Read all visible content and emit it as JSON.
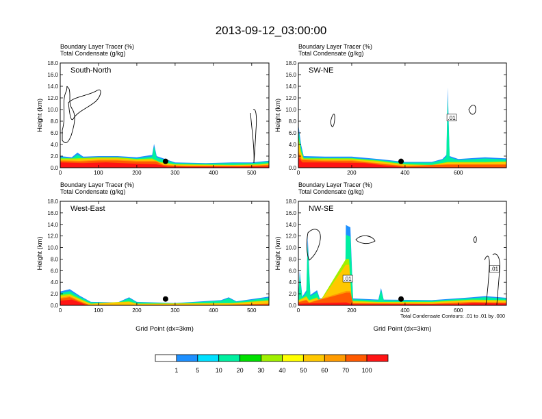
{
  "title": "2013-09-12_03:00:00",
  "subtitle_field1": "Boundary Layer Tracer   (%)",
  "subtitle_field2": "Total Condensate   (g/kg)",
  "ylabel": "Height (km)",
  "xlabel": "Grid Point (dx=3km)",
  "contour_note": "Total Condensate Contours: .01 to .01 by .000",
  "chart_data": [
    {
      "type": "contour",
      "panel": "South-North",
      "xlim": [
        0,
        545
      ],
      "ylim": [
        0,
        18
      ],
      "xticks": [
        0,
        100,
        200,
        300,
        400,
        500
      ],
      "yticks": [
        0,
        2,
        4,
        6,
        8,
        10,
        12,
        14,
        16,
        18
      ],
      "ytick_labels": [
        "0.0",
        "2.0",
        "4.0",
        "6.0",
        "8.0",
        "10.0",
        "12.0",
        "14.0",
        "16.0",
        "18.0"
      ],
      "marker_x": 275,
      "marker_y": 1.1,
      "contour_labels": [],
      "tracer_bands": [
        {
          "min": 5,
          "points": [
            [
              0,
              2.0
            ],
            [
              30,
              1.8
            ],
            [
              45,
              2.6
            ],
            [
              60,
              1.9
            ],
            [
              100,
              2.0
            ],
            [
              150,
              2.0
            ],
            [
              200,
              1.8
            ],
            [
              240,
              2.2
            ],
            [
              245,
              4.1
            ],
            [
              252,
              2.0
            ],
            [
              300,
              0.9
            ],
            [
              380,
              0.8
            ],
            [
              450,
              0.9
            ],
            [
              500,
              0.9
            ],
            [
              545,
              1.2
            ]
          ]
        },
        {
          "min": 40,
          "points": [
            [
              0,
              1.6
            ],
            [
              40,
              1.6
            ],
            [
              100,
              1.8
            ],
            [
              150,
              1.8
            ],
            [
              200,
              1.5
            ],
            [
              240,
              1.6
            ],
            [
              260,
              1.0
            ],
            [
              300,
              0.6
            ],
            [
              450,
              0.5
            ],
            [
              520,
              0.6
            ],
            [
              545,
              0.8
            ]
          ]
        },
        {
          "min": 70,
          "points": [
            [
              0,
              1.3
            ],
            [
              50,
              1.2
            ],
            [
              100,
              1.4
            ],
            [
              150,
              1.4
            ],
            [
              200,
              1.2
            ],
            [
              250,
              1.2
            ],
            [
              270,
              0.5
            ],
            [
              330,
              0.3
            ],
            [
              470,
              0.3
            ],
            [
              545,
              0.5
            ]
          ]
        },
        {
          "min": 100,
          "points": [
            [
              0,
              0.9
            ],
            [
              60,
              0.8
            ],
            [
              120,
              0.9
            ],
            [
              200,
              0.7
            ],
            [
              250,
              0.6
            ],
            [
              280,
              0.2
            ],
            [
              545,
              0.2
            ]
          ]
        }
      ]
    },
    {
      "type": "contour",
      "panel": "SW-NE",
      "xlim": [
        0,
        780
      ],
      "ylim": [
        0,
        18
      ],
      "xticks": [
        0,
        200,
        400,
        600
      ],
      "yticks": [
        0,
        2,
        4,
        6,
        8,
        10,
        12,
        14,
        16,
        18
      ],
      "ytick_labels": [
        "0.0",
        "2.0",
        "4.0",
        "6.0",
        "8.0",
        "10.0",
        "12.0",
        "14.0",
        "16.0",
        "18.0"
      ],
      "marker_x": 385,
      "marker_y": 1.1,
      "contour_labels": [
        ".01"
      ],
      "tracer_bands": [
        {
          "min": 5,
          "points": [
            [
              0,
              7.5
            ],
            [
              10,
              4.0
            ],
            [
              20,
              2.0
            ],
            [
              100,
              1.9
            ],
            [
              200,
              1.9
            ],
            [
              300,
              1.5
            ],
            [
              400,
              1.0
            ],
            [
              500,
              1.0
            ],
            [
              540,
              1.5
            ],
            [
              555,
              2.2
            ],
            [
              560,
              13.8
            ],
            [
              567,
              2.0
            ],
            [
              600,
              1.5
            ],
            [
              700,
              1.8
            ],
            [
              780,
              1.6
            ]
          ]
        },
        {
          "min": 40,
          "points": [
            [
              0,
              5.5
            ],
            [
              10,
              2.8
            ],
            [
              20,
              1.6
            ],
            [
              100,
              1.6
            ],
            [
              200,
              1.6
            ],
            [
              300,
              1.2
            ],
            [
              400,
              0.6
            ],
            [
              500,
              0.5
            ],
            [
              560,
              1.0
            ],
            [
              600,
              1.0
            ],
            [
              700,
              1.0
            ],
            [
              780,
              1.1
            ]
          ]
        },
        {
          "min": 70,
          "points": [
            [
              0,
              3.0
            ],
            [
              12,
              1.5
            ],
            [
              100,
              1.3
            ],
            [
              200,
              1.3
            ],
            [
              300,
              0.8
            ],
            [
              400,
              0.3
            ],
            [
              560,
              0.6
            ],
            [
              700,
              0.6
            ],
            [
              780,
              0.6
            ]
          ]
        },
        {
          "min": 100,
          "points": [
            [
              0,
              1.8
            ],
            [
              15,
              0.9
            ],
            [
              100,
              0.9
            ],
            [
              250,
              0.8
            ],
            [
              320,
              0.4
            ],
            [
              400,
              0.1
            ],
            [
              780,
              0.1
            ]
          ]
        }
      ]
    },
    {
      "type": "contour",
      "panel": "West-East",
      "xlim": [
        0,
        545
      ],
      "ylim": [
        0,
        18
      ],
      "xticks": [
        0,
        100,
        200,
        300,
        400,
        500
      ],
      "yticks": [
        0,
        2,
        4,
        6,
        8,
        10,
        12,
        14,
        16,
        18
      ],
      "ytick_labels": [
        "0.0",
        "2.0",
        "4.0",
        "6.0",
        "8.0",
        "10.0",
        "12.0",
        "14.0",
        "16.0",
        "18.0"
      ],
      "marker_x": 275,
      "marker_y": 1.1,
      "contour_labels": [],
      "tracer_bands": [
        {
          "min": 5,
          "points": [
            [
              0,
              2.4
            ],
            [
              25,
              2.8
            ],
            [
              50,
              1.7
            ],
            [
              80,
              0.6
            ],
            [
              150,
              0.5
            ],
            [
              180,
              1.4
            ],
            [
              200,
              0.6
            ],
            [
              300,
              0.4
            ],
            [
              420,
              0.9
            ],
            [
              440,
              1.4
            ],
            [
              460,
              0.7
            ],
            [
              545,
              1.5
            ]
          ]
        },
        {
          "min": 40,
          "points": [
            [
              0,
              1.8
            ],
            [
              25,
              2.0
            ],
            [
              50,
              1.2
            ],
            [
              80,
              0.3
            ],
            [
              180,
              0.7
            ],
            [
              200,
              0.3
            ],
            [
              450,
              0.4
            ],
            [
              545,
              0.9
            ]
          ]
        },
        {
          "min": 70,
          "points": [
            [
              0,
              1.3
            ],
            [
              25,
              1.6
            ],
            [
              50,
              0.8
            ],
            [
              75,
              0.1
            ],
            [
              420,
              0.1
            ],
            [
              545,
              0.3
            ]
          ]
        },
        {
          "min": 100,
          "points": [
            [
              0,
              0.8
            ],
            [
              30,
              1.0
            ],
            [
              55,
              0.4
            ],
            [
              70,
              0.0
            ]
          ]
        }
      ]
    },
    {
      "type": "contour",
      "panel": "NW-SE",
      "xlim": [
        0,
        780
      ],
      "ylim": [
        0,
        18
      ],
      "xticks": [
        0,
        200,
        400,
        600
      ],
      "xtick_labels": [
        "0",
        "200",
        "400",
        "600"
      ],
      "yticks": [
        0,
        2,
        4,
        6,
        8,
        10,
        12,
        14,
        16,
        18
      ],
      "ytick_labels": [
        "0.0",
        "2.0",
        "4.0",
        "6.0",
        "8.0",
        "10.0",
        "12.0",
        "14.0",
        "16.0",
        "18.0"
      ],
      "marker_x": 385,
      "marker_y": 1.1,
      "contour_labels": [
        ".01",
        ".01"
      ],
      "tracer_bands": [
        {
          "min": 5,
          "points": [
            [
              0,
              1.2
            ],
            [
              5,
              6.0
            ],
            [
              15,
              1.5
            ],
            [
              30,
              2.6
            ],
            [
              35,
              12.0
            ],
            [
              45,
              1.8
            ],
            [
              70,
              2.6
            ],
            [
              80,
              1.2
            ],
            [
              175,
              1.6
            ],
            [
              178,
              13.9
            ],
            [
              195,
              13.5
            ],
            [
              205,
              1.2
            ],
            [
              300,
              1.0
            ],
            [
              310,
              3.0
            ],
            [
              320,
              1.0
            ],
            [
              500,
              0.9
            ],
            [
              650,
              1.4
            ],
            [
              700,
              1.6
            ],
            [
              780,
              1.3
            ]
          ]
        },
        {
          "min": 40,
          "points": [
            [
              0,
              0.9
            ],
            [
              30,
              1.6
            ],
            [
              40,
              0.9
            ],
            [
              70,
              1.4
            ],
            [
              80,
              0.6
            ],
            [
              178,
              8.0
            ],
            [
              190,
              8.0
            ],
            [
              200,
              0.8
            ],
            [
              300,
              0.6
            ],
            [
              500,
              0.6
            ],
            [
              650,
              1.0
            ],
            [
              780,
              0.9
            ]
          ]
        },
        {
          "min": 70,
          "points": [
            [
              0,
              0.6
            ],
            [
              30,
              1.0
            ],
            [
              40,
              0.5
            ],
            [
              180,
              2.5
            ],
            [
              195,
              2.5
            ],
            [
              205,
              0.4
            ],
            [
              500,
              0.3
            ],
            [
              650,
              0.6
            ],
            [
              780,
              0.5
            ]
          ]
        },
        {
          "min": 100,
          "points": [
            [
              0,
              0.3
            ],
            [
              180,
              0.5
            ],
            [
              200,
              0.2
            ],
            [
              600,
              0.2
            ],
            [
              660,
              0.4
            ],
            [
              780,
              0.3
            ]
          ]
        }
      ]
    }
  ],
  "colorbar": {
    "labels": [
      "1",
      "5",
      "10",
      "20",
      "30",
      "40",
      "50",
      "60",
      "70",
      "100"
    ],
    "colors": [
      "#ffffff",
      "#1e90ff",
      "#00e0ff",
      "#00f0a0",
      "#00e000",
      "#a0f000",
      "#ffff00",
      "#ffc800",
      "#ff9b00",
      "#ff5a00",
      "#ff1414"
    ]
  }
}
